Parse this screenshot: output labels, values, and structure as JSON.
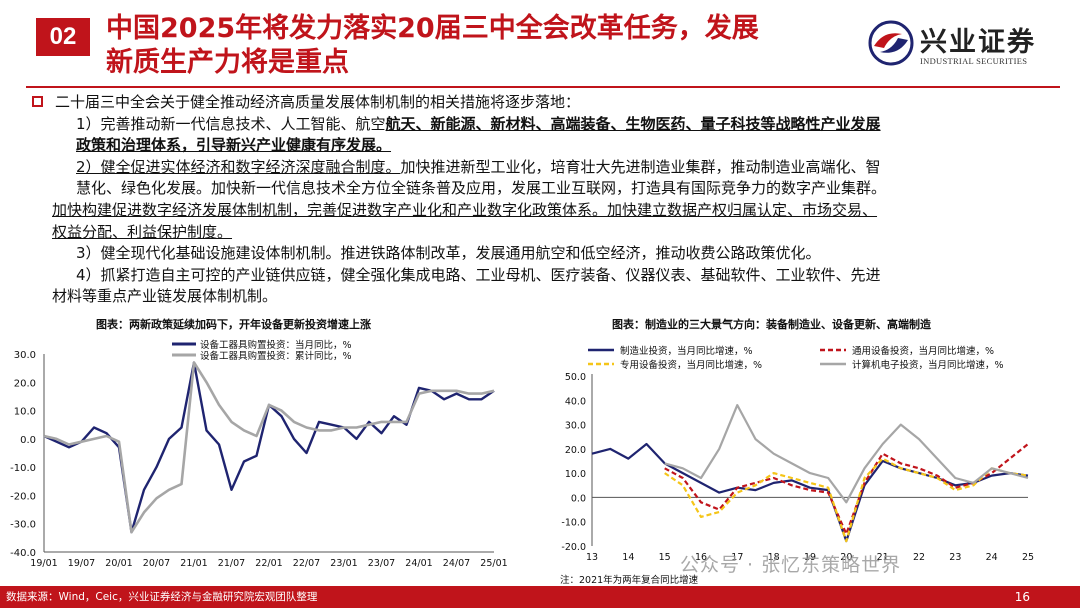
{
  "header": {
    "badge": "02",
    "title_line1": "中国2025年将发力落实20届三中全会改革任务，发展",
    "title_line2": "新质生产力将是重点"
  },
  "logo": {
    "cn": "兴业证券",
    "en": "INDUSTRIAL SECURITIES"
  },
  "body": {
    "intro": "二十届三中全会关于健全推动经济高质量发展体制机制的相关措施将逐步落地：",
    "p1_a": "1）完善推动新一代信息技术、人工智能、航空",
    "p1_b": "航天、新能源、新材料、高端装备、生物医药、量子科技等战略性产业发展",
    "p1_c": "政策和治理体系，引导新兴产业健康有序发展。",
    "p2_a": "2）健全促进实体经济和数字经济深度融合制度。",
    "p2_b": "加快推进新型工业化，培育壮大先进制造业集群，推动制造业高端化、智",
    "p2_c": "慧化、绿色化发展。加快新一代信息技术全方位全链条普及应用，发展工业互联网，打造具有国际竞争力的数字产业集群。",
    "p2_d": "加快构建促进数字经济发展体制机制，完善促进数字产业化和产业数字化政策体系。",
    "p2_e": "加快建立数据产权归属认定、市场交易、",
    "p2_f": "权益分配、利益保护制度。",
    "p3": "3）健全现代化基础设施建设体制机制。推进铁路体制改革，发展通用航空和低空经济，推动收费公路政策优化。",
    "p4_a": "4）抓紧打造自主可控的产业链供应链，健全强化集成电路、工业母机、医疗装备、仪器仪表、基础软件、工业软件、先进",
    "p4_b": "材料等重点产业链发展体制机制。"
  },
  "footer": {
    "source": "数据来源：Wind，Ceic，兴业证券经济与金融研究院宏观团队整理",
    "page": "16",
    "note": "注：2021年为两年复合同比增速",
    "watermark": "公众号 · 张忆东策略世界"
  },
  "colors": {
    "brand_red": "#c0141b",
    "navy": "#1f2470",
    "gray": "#a6a6a6",
    "gold": "#f5c518",
    "red": "#c0141b"
  },
  "chart_data": [
    {
      "type": "line",
      "title": "图表：两新政策延续加码下，开年设备更新投资增速上涨",
      "xlabel": "",
      "ylabel": "",
      "ylim": [
        -40,
        30
      ],
      "yticks": [
        "30.0",
        "20.0",
        "10.0",
        "0.0",
        "-10.0",
        "-20.0",
        "-30.0",
        "-40.0"
      ],
      "xticks": [
        "19/01",
        "19/07",
        "20/01",
        "20/07",
        "21/01",
        "21/07",
        "22/01",
        "22/07",
        "23/01",
        "23/07",
        "24/01",
        "24/07",
        "25/01"
      ],
      "x": [
        "19/01",
        "19/03",
        "19/05",
        "19/07",
        "19/09",
        "19/11",
        "20/01",
        "20/03",
        "20/05",
        "20/07",
        "20/09",
        "20/11",
        "21/01",
        "21/03",
        "21/05",
        "21/07",
        "21/09",
        "21/11",
        "22/01",
        "22/03",
        "22/05",
        "22/07",
        "22/09",
        "22/11",
        "23/01",
        "23/03",
        "23/05",
        "23/07",
        "23/09",
        "23/11",
        "24/01",
        "24/03",
        "24/05",
        "24/07",
        "24/09",
        "24/11",
        "25/01"
      ],
      "legend_position": "top",
      "series": [
        {
          "name": "设备工器具购置投资：当月同比，%",
          "color": "#1f2470",
          "values": [
            1,
            -1,
            -3,
            -1,
            4,
            2,
            -3,
            -33,
            -18,
            -10,
            0,
            4,
            27,
            3,
            -2,
            -18,
            -8,
            -6,
            12,
            8,
            0,
            -5,
            6,
            5,
            4,
            0,
            6,
            2,
            8,
            5,
            18,
            17,
            14,
            16,
            14,
            14,
            17
          ]
        },
        {
          "name": "设备工器具购置投资：累计同比，%",
          "color": "#a6a6a6",
          "values": [
            1,
            0,
            -2,
            -1,
            0,
            1,
            -1,
            -33,
            -26,
            -21,
            -18,
            -16,
            27,
            20,
            12,
            6,
            3,
            1,
            12,
            10,
            6,
            4,
            3,
            3,
            4,
            4,
            5,
            6,
            6,
            6,
            16,
            17,
            17,
            17,
            16,
            16,
            17
          ]
        }
      ]
    },
    {
      "type": "line",
      "title": "图表：制造业的三大景气方向：装备制造业、设备更新、高端制造",
      "xlabel": "",
      "ylabel": "",
      "ylim": [
        -20,
        50
      ],
      "yticks": [
        "50.0",
        "40.0",
        "30.0",
        "20.0",
        "10.0",
        "0.0",
        "-10.0",
        "-20.0"
      ],
      "xticks": [
        "13",
        "14",
        "15",
        "16",
        "17",
        "18",
        "19",
        "20",
        "21",
        "22",
        "23",
        "24",
        "25"
      ],
      "legend_position": "top",
      "series": [
        {
          "name": "制造业投资，当月同比增速，%",
          "color": "#1f2470",
          "style": "solid",
          "x": [
            "13",
            "13.5",
            "14",
            "14.5",
            "15",
            "15.5",
            "16",
            "16.5",
            "17",
            "17.5",
            "18",
            "18.5",
            "19",
            "19.5",
            "20",
            "20.5",
            "21",
            "21.5",
            "22",
            "22.5",
            "23",
            "23.5",
            "24",
            "24.5",
            "25"
          ],
          "values": [
            18,
            20,
            16,
            22,
            14,
            10,
            6,
            2,
            4,
            3,
            6,
            7,
            4,
            3,
            -18,
            5,
            15,
            12,
            10,
            8,
            5,
            6,
            9,
            10,
            9
          ]
        },
        {
          "name": "通用设备投资，当月同比增速，%",
          "color": "#c0141b",
          "style": "dashed",
          "x": [
            "15",
            "15.5",
            "16",
            "16.5",
            "17",
            "17.5",
            "18",
            "18.5",
            "19",
            "19.5",
            "20",
            "20.5",
            "21",
            "21.5",
            "22",
            "22.5",
            "23",
            "23.5",
            "24",
            "24.5",
            "25"
          ],
          "values": [
            12,
            8,
            -2,
            -5,
            4,
            6,
            8,
            5,
            3,
            2,
            -15,
            6,
            18,
            14,
            12,
            9,
            4,
            6,
            10,
            16,
            22
          ]
        },
        {
          "name": "专用设备投资，当月同比增速，%",
          "color": "#f5c518",
          "style": "dashed",
          "x": [
            "15",
            "15.5",
            "16",
            "16.5",
            "17",
            "17.5",
            "18",
            "18.5",
            "19",
            "19.5",
            "20",
            "20.5",
            "21",
            "21.5",
            "22",
            "22.5",
            "23",
            "23.5",
            "24",
            "24.5",
            "25"
          ],
          "values": [
            10,
            5,
            -8,
            -6,
            2,
            5,
            10,
            8,
            6,
            4,
            -18,
            8,
            16,
            12,
            10,
            8,
            3,
            5,
            12,
            10,
            9
          ]
        },
        {
          "name": "计算机电子投资，当月同比增速，%",
          "color": "#a6a6a6",
          "style": "solid",
          "x": [
            "15",
            "15.5",
            "16",
            "16.5",
            "17",
            "17.5",
            "18",
            "18.5",
            "19",
            "19.5",
            "20",
            "20.5",
            "21",
            "21.5",
            "22",
            "22.5",
            "23",
            "23.5",
            "24",
            "24.5",
            "25"
          ],
          "values": [
            14,
            12,
            8,
            20,
            38,
            24,
            18,
            14,
            10,
            8,
            -2,
            12,
            22,
            30,
            24,
            16,
            8,
            6,
            12,
            10,
            8
          ]
        }
      ]
    }
  ]
}
